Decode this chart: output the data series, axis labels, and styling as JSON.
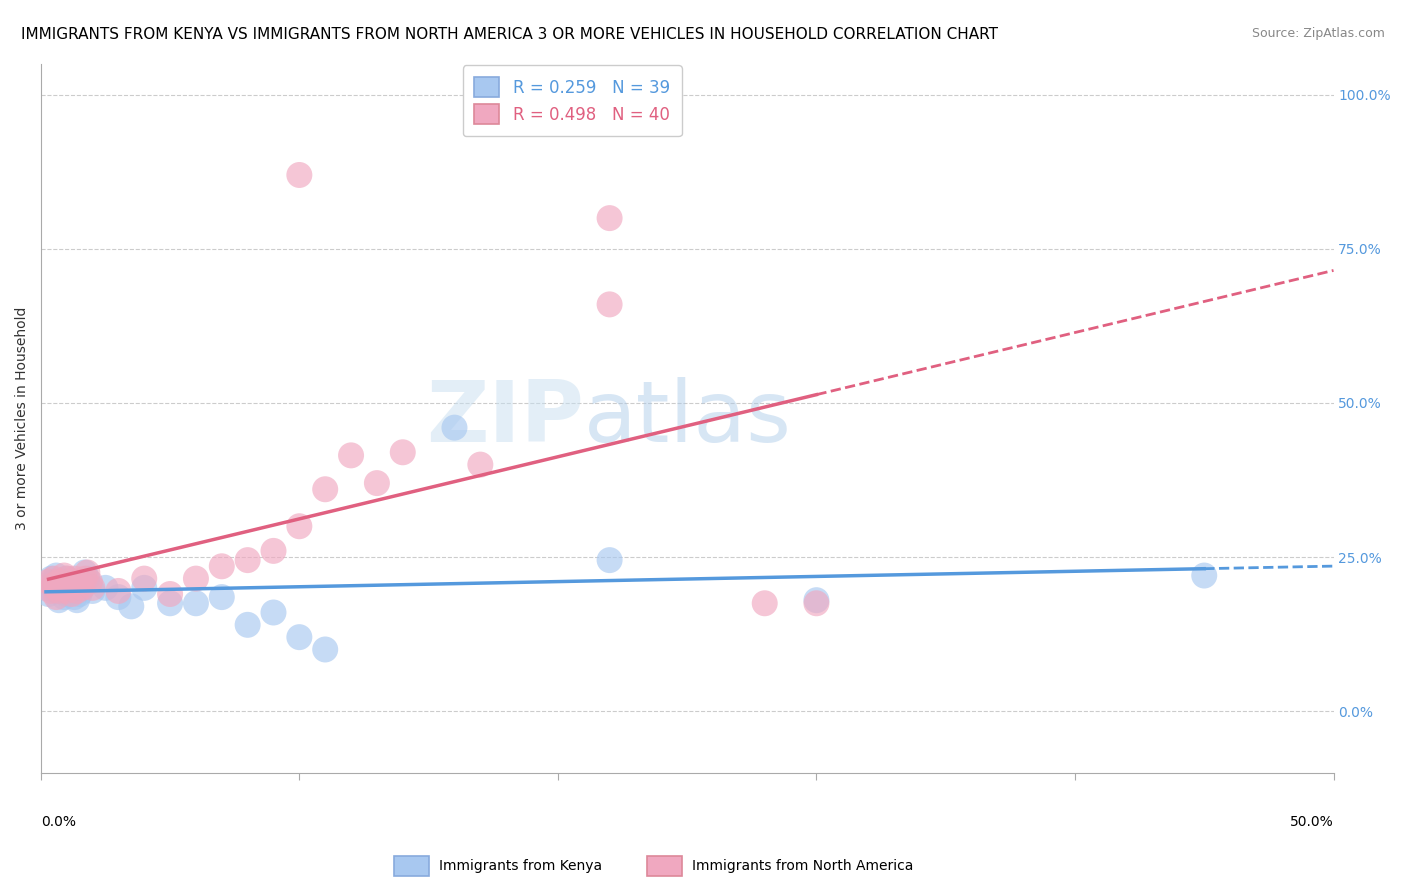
{
  "title": "IMMIGRANTS FROM KENYA VS IMMIGRANTS FROM NORTH AMERICA 3 OR MORE VEHICLES IN HOUSEHOLD CORRELATION CHART",
  "source": "Source: ZipAtlas.com",
  "ylabel": "3 or more Vehicles in Household",
  "kenya_R": 0.259,
  "kenya_N": 39,
  "na_R": 0.498,
  "na_N": 40,
  "kenya_color": "#a8c8f0",
  "na_color": "#f0a8c0",
  "kenya_line_color": "#5599dd",
  "na_line_color": "#e06080",
  "xlim": [
    0.0,
    0.5
  ],
  "ylim": [
    -0.1,
    1.05
  ],
  "yticks": [
    0.0,
    0.25,
    0.5,
    0.75,
    1.0
  ],
  "ytick_labels": [
    "0.0%",
    "25.0%",
    "50.0%",
    "75.0%",
    "100.0%"
  ],
  "kenya_scatter": [
    [
      0.002,
      0.2
    ],
    [
      0.003,
      0.19
    ],
    [
      0.004,
      0.215
    ],
    [
      0.005,
      0.205
    ],
    [
      0.005,
      0.21
    ],
    [
      0.006,
      0.195
    ],
    [
      0.006,
      0.22
    ],
    [
      0.007,
      0.205
    ],
    [
      0.007,
      0.18
    ],
    [
      0.008,
      0.195
    ],
    [
      0.008,
      0.21
    ],
    [
      0.009,
      0.2
    ],
    [
      0.009,
      0.185
    ],
    [
      0.01,
      0.19
    ],
    [
      0.01,
      0.215
    ],
    [
      0.011,
      0.2
    ],
    [
      0.012,
      0.195
    ],
    [
      0.013,
      0.185
    ],
    [
      0.014,
      0.18
    ],
    [
      0.015,
      0.19
    ],
    [
      0.016,
      0.2
    ],
    [
      0.017,
      0.225
    ],
    [
      0.018,
      0.215
    ],
    [
      0.02,
      0.195
    ],
    [
      0.025,
      0.2
    ],
    [
      0.03,
      0.185
    ],
    [
      0.035,
      0.17
    ],
    [
      0.04,
      0.2
    ],
    [
      0.05,
      0.175
    ],
    [
      0.06,
      0.175
    ],
    [
      0.07,
      0.185
    ],
    [
      0.08,
      0.14
    ],
    [
      0.09,
      0.16
    ],
    [
      0.1,
      0.12
    ],
    [
      0.11,
      0.1
    ],
    [
      0.16,
      0.46
    ],
    [
      0.22,
      0.245
    ],
    [
      0.3,
      0.18
    ],
    [
      0.45,
      0.22
    ]
  ],
  "na_scatter": [
    [
      0.003,
      0.21
    ],
    [
      0.004,
      0.195
    ],
    [
      0.005,
      0.205
    ],
    [
      0.005,
      0.215
    ],
    [
      0.006,
      0.2
    ],
    [
      0.006,
      0.185
    ],
    [
      0.007,
      0.21
    ],
    [
      0.007,
      0.195
    ],
    [
      0.008,
      0.2
    ],
    [
      0.009,
      0.22
    ],
    [
      0.01,
      0.195
    ],
    [
      0.01,
      0.215
    ],
    [
      0.011,
      0.205
    ],
    [
      0.012,
      0.19
    ],
    [
      0.013,
      0.215
    ],
    [
      0.014,
      0.195
    ],
    [
      0.015,
      0.21
    ],
    [
      0.016,
      0.2
    ],
    [
      0.017,
      0.215
    ],
    [
      0.018,
      0.225
    ],
    [
      0.019,
      0.21
    ],
    [
      0.02,
      0.2
    ],
    [
      0.03,
      0.195
    ],
    [
      0.04,
      0.215
    ],
    [
      0.05,
      0.19
    ],
    [
      0.06,
      0.215
    ],
    [
      0.07,
      0.235
    ],
    [
      0.08,
      0.245
    ],
    [
      0.09,
      0.26
    ],
    [
      0.1,
      0.3
    ],
    [
      0.11,
      0.36
    ],
    [
      0.12,
      0.415
    ],
    [
      0.13,
      0.37
    ],
    [
      0.14,
      0.42
    ],
    [
      0.17,
      0.4
    ],
    [
      0.22,
      0.66
    ],
    [
      0.22,
      0.8
    ],
    [
      0.28,
      0.175
    ],
    [
      0.3,
      0.175
    ],
    [
      0.1,
      0.87
    ]
  ],
  "watermark_zip": "ZIP",
  "watermark_atlas": "atlas",
  "background_color": "#ffffff",
  "grid_color": "#cccccc",
  "title_fontsize": 11,
  "label_fontsize": 10,
  "tick_fontsize": 10,
  "legend_fontsize": 12
}
